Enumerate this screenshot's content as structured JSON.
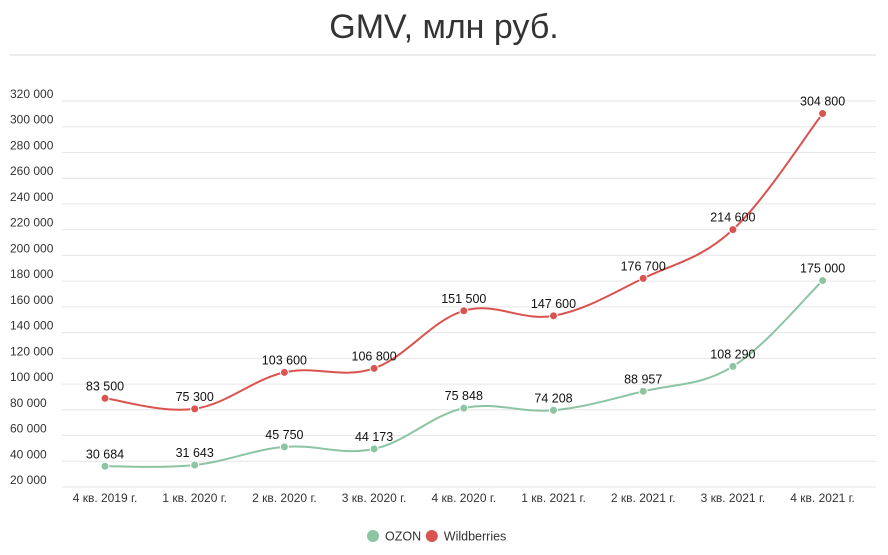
{
  "chart_data": {
    "type": "line",
    "title": "GMV, млн руб.",
    "xlabel": "",
    "ylabel": "",
    "categories": [
      "4 кв. 2019 г.",
      "1 кв. 2020 г.",
      "2 кв. 2020 г.",
      "3 кв. 2020 г.",
      "4 кв. 2020 г.",
      "1 кв. 2021 г.",
      "2 кв. 2021 г.",
      "3 кв. 2021 г.",
      "4 кв. 2021 г."
    ],
    "ylim": [
      20000,
      320000
    ],
    "yticks": [
      20000,
      40000,
      60000,
      80000,
      100000,
      120000,
      140000,
      160000,
      180000,
      200000,
      220000,
      240000,
      260000,
      280000,
      300000,
      320000
    ],
    "ytick_labels": [
      "20 000",
      "40 000",
      "60 000",
      "80 000",
      "100 000",
      "120 000",
      "140 000",
      "160 000",
      "180 000",
      "200 000",
      "220 000",
      "240 000",
      "260 000",
      "280 000",
      "300 000",
      "320 000"
    ],
    "grid": true,
    "legend_position": "bottom-center",
    "series": [
      {
        "name": "OZON",
        "color": "#8cc4a4",
        "values": [
          30684,
          31643,
          45750,
          44173,
          75848,
          74208,
          88957,
          108290,
          175000
        ],
        "labels": [
          "30 684",
          "31 643",
          "45 750",
          "44 173",
          "75 848",
          "74 208",
          "88 957",
          "108 290",
          "175 000"
        ]
      },
      {
        "name": "Wildberries",
        "color": "#d9534f",
        "values": [
          83500,
          75300,
          103600,
          106800,
          151500,
          147600,
          176700,
          214600,
          304800
        ],
        "labels": [
          "83 500",
          "75 300",
          "103 600",
          "106 800",
          "151 500",
          "147 600",
          "176 700",
          "214 600",
          "304 800"
        ]
      }
    ]
  }
}
